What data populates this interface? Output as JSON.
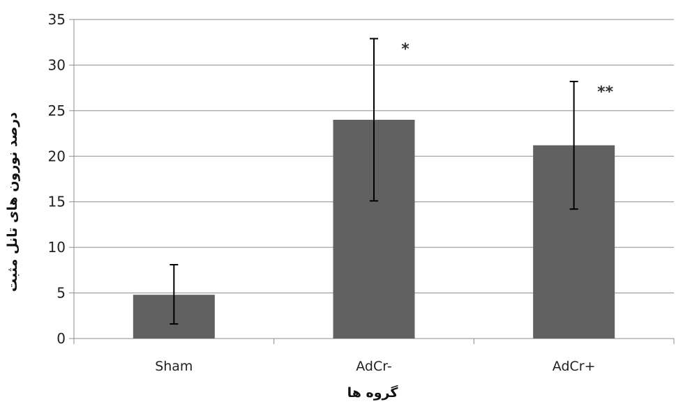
{
  "chart_data": {
    "type": "bar",
    "title": "",
    "xlabel": "گروه ها",
    "ylabel": "درصد نورون های تانل مثبت",
    "categories": [
      "Sham",
      "AdCr-",
      "AdCr+"
    ],
    "series": [
      {
        "values": [
          4.8,
          24.0,
          21.2
        ],
        "error_low": [
          1.6,
          15.1,
          14.2
        ],
        "error_high": [
          8.1,
          32.9,
          28.2
        ],
        "annotations": [
          "",
          "*",
          "**"
        ]
      }
    ],
    "ylim": [
      0,
      35
    ],
    "yticks": [
      0,
      5,
      10,
      15,
      20,
      25,
      30,
      35
    ],
    "grid": true,
    "legend": "none",
    "colors": {
      "bar": "#616161",
      "grid": "#8c8c8c",
      "axis": "#8c8c8c",
      "error": "#000000"
    }
  }
}
